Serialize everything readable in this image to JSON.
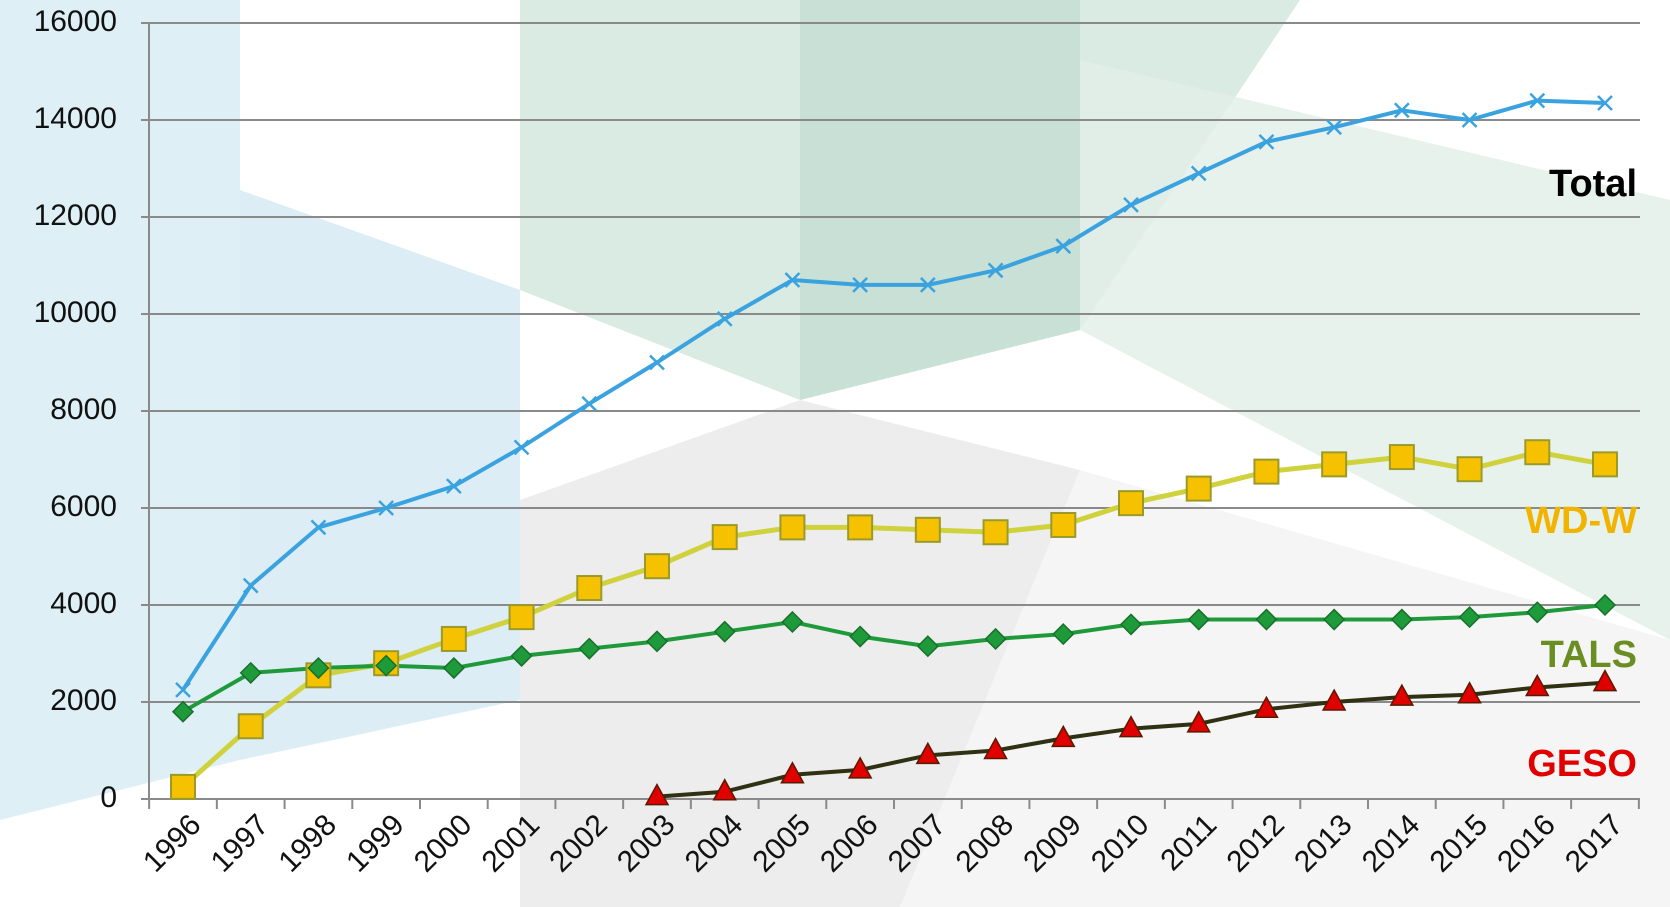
{
  "chart_data": {
    "type": "line",
    "categories": [
      "1996",
      "1997",
      "1998",
      "1999",
      "2000",
      "2001",
      "2002",
      "2003",
      "2004",
      "2005",
      "2006",
      "2007",
      "2008",
      "2009",
      "2010",
      "2011",
      "2012",
      "2013",
      "2014",
      "2015",
      "2016",
      "2017"
    ],
    "ylim": [
      0,
      16000
    ],
    "yticks": [
      0,
      2000,
      4000,
      6000,
      8000,
      10000,
      12000,
      14000,
      16000
    ],
    "grid": true,
    "series": [
      {
        "name": "Total",
        "color": "#3aa3df",
        "marker": "x",
        "marker_color": "#3aa3df",
        "label_color": "#000000",
        "values": [
          2250,
          4400,
          5600,
          6000,
          6450,
          7250,
          8150,
          9000,
          9900,
          10700,
          10600,
          10600,
          10900,
          11400,
          12250,
          12900,
          13550,
          13850,
          14200,
          14000,
          14400,
          14350
        ]
      },
      {
        "name": "WD-W",
        "color": "#cfd23c",
        "marker": "square",
        "marker_color": "#f6c200",
        "label_color": "#f0b400",
        "values": [
          250,
          1500,
          2550,
          2800,
          3300,
          3750,
          4350,
          4800,
          5400,
          5600,
          5600,
          5550,
          5500,
          5650,
          6100,
          6400,
          6750,
          6900,
          7050,
          6800,
          7150,
          6900
        ]
      },
      {
        "name": "TALS",
        "color": "#1f9a3a",
        "marker": "diamond",
        "marker_color": "#1f9a3a",
        "label_color": "#6b8e23",
        "values": [
          1800,
          2600,
          2700,
          2750,
          2700,
          2950,
          3100,
          3250,
          3450,
          3650,
          3350,
          3150,
          3300,
          3400,
          3600,
          3700,
          3700,
          3700,
          3700,
          3750,
          3850,
          4000
        ]
      },
      {
        "name": "GESO",
        "color": "#2e3112",
        "marker": "triangle",
        "marker_color": "#e00000",
        "label_color": "#e00000",
        "values": [
          null,
          null,
          null,
          null,
          null,
          null,
          null,
          50,
          150,
          500,
          600,
          900,
          1000,
          1250,
          1450,
          1550,
          1850,
          2000,
          2100,
          2150,
          2300,
          2400
        ]
      }
    ]
  }
}
